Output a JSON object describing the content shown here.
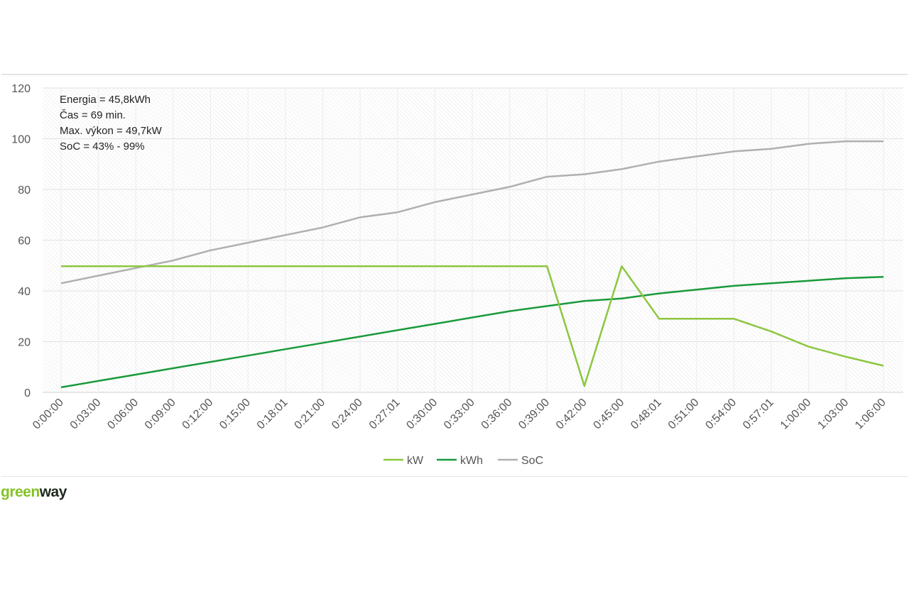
{
  "chart_data": {
    "type": "line",
    "annotations": [
      "Energia = 45,8kWh",
      "Čas = 69 min.",
      "Max. výkon = 49,7kW",
      "SoC = 43% - 99%"
    ],
    "categories": [
      "0:00:00",
      "0:03:00",
      "0:06:00",
      "0:09:00",
      "0:12:00",
      "0:15:00",
      "0:18:01",
      "0:21:00",
      "0:24:00",
      "0:27:01",
      "0:30:00",
      "0:33:00",
      "0:36:00",
      "0:39:00",
      "0:42:00",
      "0:45:00",
      "0:48:01",
      "0:51:00",
      "0:54:00",
      "0:57:01",
      "1:00:00",
      "1:03:00",
      "1:06:00"
    ],
    "ylim": [
      0,
      120
    ],
    "yticks": [
      0,
      20,
      40,
      60,
      80,
      100,
      120
    ],
    "grid": true,
    "legend_position": "bottom",
    "series": [
      {
        "name": "kW",
        "color": "#8cc63f",
        "values": [
          49.7,
          49.7,
          49.7,
          49.7,
          49.7,
          49.7,
          49.7,
          49.7,
          49.7,
          49.7,
          49.7,
          49.7,
          49.7,
          49.7,
          2.5,
          49.7,
          29,
          29,
          29,
          24,
          18,
          14,
          10.5
        ]
      },
      {
        "name": "kWh",
        "color": "#1a9a3a",
        "values": [
          2,
          4.5,
          7,
          9.5,
          12,
          14.5,
          17,
          19.5,
          22,
          24.5,
          27,
          29.5,
          32,
          34,
          36,
          37,
          39,
          40.5,
          42,
          43,
          44,
          45,
          45.5
        ]
      },
      {
        "name": "SoC",
        "color": "#b0b0b0",
        "values": [
          43,
          46,
          49,
          52,
          56,
          59,
          62,
          65,
          69,
          71,
          75,
          78,
          81,
          85,
          86,
          88,
          91,
          93,
          95,
          96,
          98,
          99,
          99
        ]
      }
    ]
  },
  "brand": {
    "part1": "green",
    "part2": "way"
  }
}
